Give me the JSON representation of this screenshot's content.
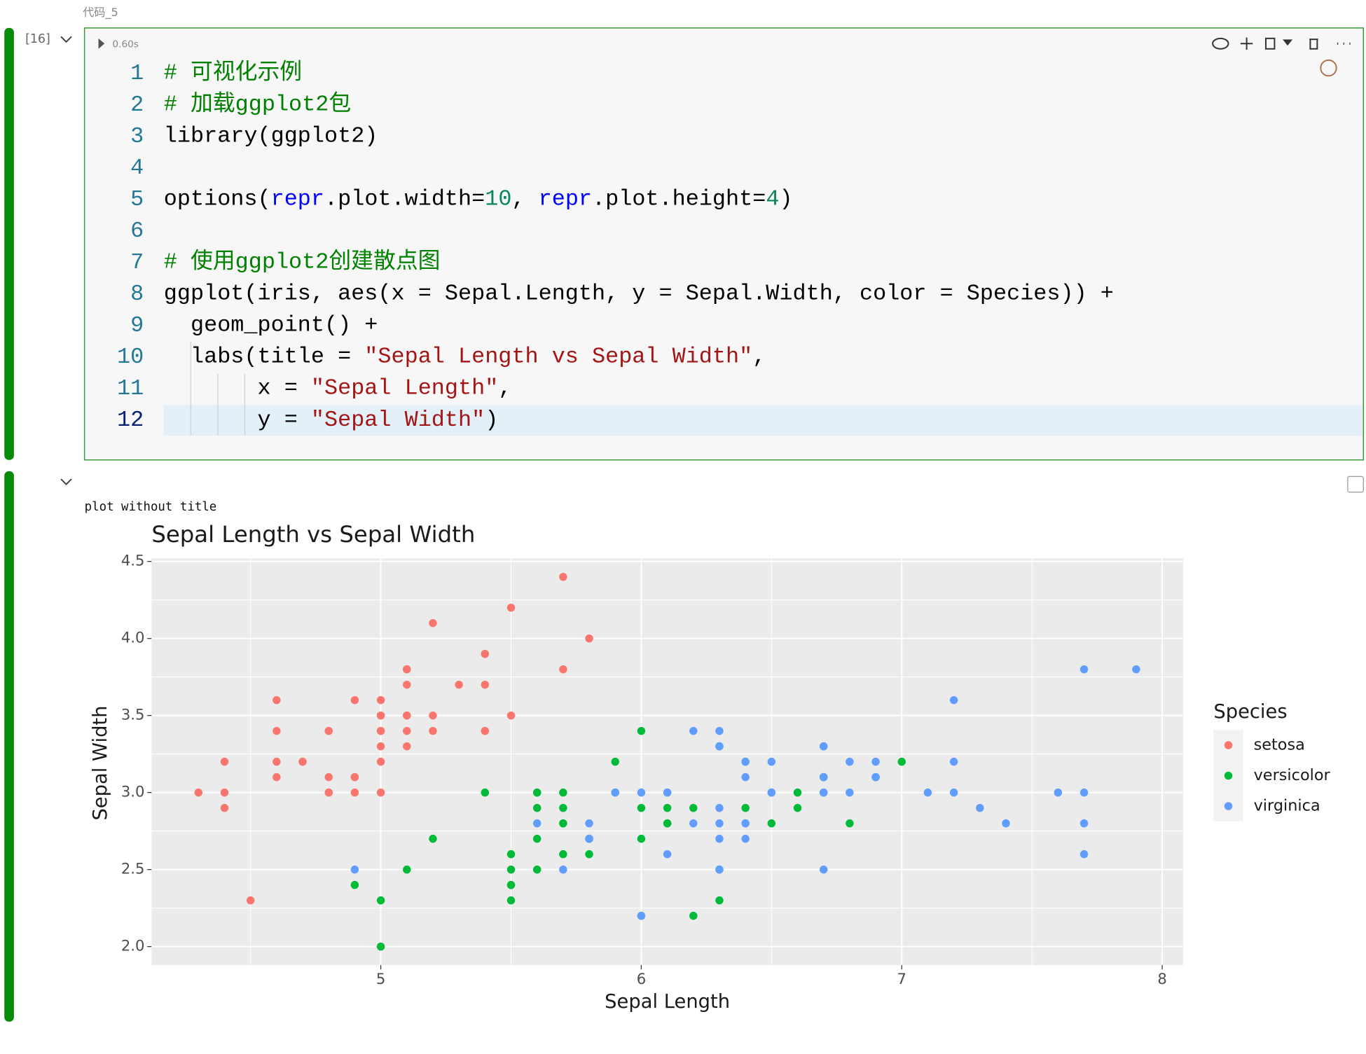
{
  "header": {
    "label": "代码_5"
  },
  "cell": {
    "execution_count": "[16]",
    "duration": "0.60s",
    "lines": [
      {
        "number": 1,
        "tokens": [
          {
            "text": "# 可视化示例",
            "color": "#008000"
          }
        ]
      },
      {
        "number": 2,
        "tokens": [
          {
            "text": "# 加载ggplot2包",
            "color": "#008000"
          }
        ]
      },
      {
        "number": 3,
        "tokens": [
          {
            "text": "library(ggplot2)",
            "color": "#000000"
          }
        ]
      },
      {
        "number": 4,
        "tokens": []
      },
      {
        "number": 5,
        "tokens": [
          {
            "text": "options(",
            "color": "#000000"
          },
          {
            "text": "repr",
            "color": "#0000ff"
          },
          {
            "text": ".plot.width=",
            "color": "#000000"
          },
          {
            "text": "10",
            "color": "#098658"
          },
          {
            "text": ", ",
            "color": "#000000"
          },
          {
            "text": "repr",
            "color": "#0000ff"
          },
          {
            "text": ".plot.height=",
            "color": "#000000"
          },
          {
            "text": "4",
            "color": "#098658"
          },
          {
            "text": ")",
            "color": "#000000"
          }
        ]
      },
      {
        "number": 6,
        "tokens": []
      },
      {
        "number": 7,
        "tokens": [
          {
            "text": "# 使用ggplot2创建散点图",
            "color": "#008000"
          }
        ]
      },
      {
        "number": 8,
        "tokens": [
          {
            "text": "ggplot(iris, aes(x = Sepal.Length, y = Sepal.Width, color = Species)) +",
            "color": "#000000"
          }
        ]
      },
      {
        "number": 9,
        "tokens": [
          {
            "text": "  geom_point() +",
            "color": "#000000"
          }
        ]
      },
      {
        "number": 10,
        "tokens": [
          {
            "text": "  labs(title = ",
            "color": "#000000"
          },
          {
            "text": "\"Sepal Length vs Sepal Width\"",
            "color": "#a31515"
          },
          {
            "text": ",",
            "color": "#000000"
          }
        ]
      },
      {
        "number": 11,
        "tokens": [
          {
            "text": "       x = ",
            "color": "#000000"
          },
          {
            "text": "\"Sepal Length\"",
            "color": "#a31515"
          },
          {
            "text": ",",
            "color": "#000000"
          }
        ]
      },
      {
        "number": 12,
        "tokens": [
          {
            "text": "       y = ",
            "color": "#000000"
          },
          {
            "text": "\"Sepal Width\"",
            "color": "#a31515"
          },
          {
            "text": ")",
            "color": "#000000"
          }
        ]
      }
    ]
  },
  "output": {
    "text": "plot without title"
  },
  "chart_data": {
    "type": "scatter",
    "title": "Sepal Length vs Sepal Width",
    "x_label": "Sepal Length",
    "y_label": "Sepal Width",
    "legend_title": "Species",
    "legend": "right",
    "grid": true,
    "xlim": [
      4.12,
      8.08
    ],
    "ylim": [
      1.88,
      4.52
    ],
    "xticks": [
      5,
      6,
      7,
      8
    ],
    "yticks": [
      {
        "value": 2,
        "label": "2.0"
      },
      2.5,
      {
        "value": 3,
        "label": "3.0"
      },
      3.5,
      {
        "value": 4,
        "label": "4.0"
      },
      4.5
    ],
    "series": [
      {
        "name": "setosa",
        "color": "#F8766D",
        "x": [
          5.1,
          4.9,
          4.7,
          4.6,
          5.0,
          5.4,
          4.6,
          5.0,
          4.4,
          4.9,
          5.4,
          4.8,
          4.8,
          4.3,
          5.8,
          5.7,
          5.4,
          5.1,
          5.7,
          5.1,
          5.4,
          5.1,
          4.6,
          5.1,
          4.8,
          5.0,
          5.0,
          5.2,
          5.2,
          4.7,
          4.8,
          5.4,
          5.2,
          5.5,
          4.9,
          5.0,
          5.5,
          4.9,
          4.4,
          5.1,
          5.0,
          4.5,
          4.4,
          5.0,
          5.1,
          4.8,
          5.1,
          4.6,
          5.3,
          5.0
        ],
        "values": [
          3.5,
          3.0,
          3.2,
          3.1,
          3.6,
          3.9,
          3.4,
          3.4,
          2.9,
          3.1,
          3.7,
          3.4,
          3.0,
          3.0,
          4.0,
          4.4,
          3.9,
          3.5,
          3.8,
          3.8,
          3.4,
          3.7,
          3.6,
          3.3,
          3.4,
          3.0,
          3.4,
          3.5,
          3.4,
          3.2,
          3.1,
          3.4,
          4.1,
          4.2,
          3.1,
          3.2,
          3.5,
          3.6,
          3.0,
          3.4,
          3.5,
          2.3,
          3.2,
          3.5,
          3.8,
          3.0,
          3.8,
          3.2,
          3.7,
          3.3
        ]
      },
      {
        "name": "versicolor",
        "color": "#00BA38",
        "x": [
          7.0,
          6.4,
          6.9,
          5.5,
          6.5,
          5.7,
          6.3,
          4.9,
          6.6,
          5.2,
          5.0,
          5.9,
          6.0,
          6.1,
          5.6,
          6.7,
          5.6,
          5.8,
          6.2,
          5.6,
          5.9,
          6.1,
          6.3,
          6.1,
          6.4,
          6.6,
          6.8,
          6.7,
          6.0,
          5.7,
          5.5,
          5.5,
          5.8,
          6.0,
          5.4,
          6.0,
          6.7,
          6.3,
          5.6,
          5.5,
          5.5,
          6.1,
          5.8,
          5.0,
          5.6,
          5.7,
          5.7,
          6.2,
          5.1,
          5.7
        ],
        "values": [
          3.2,
          3.2,
          3.1,
          2.3,
          2.8,
          2.8,
          3.3,
          2.4,
          2.9,
          2.7,
          2.0,
          3.0,
          2.2,
          2.9,
          2.9,
          3.1,
          3.0,
          2.7,
          2.2,
          2.5,
          3.2,
          2.8,
          2.5,
          2.8,
          2.9,
          3.0,
          2.8,
          3.0,
          2.9,
          2.6,
          2.4,
          2.4,
          2.7,
          2.7,
          3.0,
          3.4,
          3.1,
          2.3,
          3.0,
          2.5,
          2.6,
          3.0,
          2.6,
          2.3,
          2.7,
          3.0,
          2.9,
          2.9,
          2.5,
          2.8
        ]
      },
      {
        "name": "virginica",
        "color": "#619CFF",
        "x": [
          6.3,
          5.8,
          7.1,
          6.3,
          6.5,
          7.6,
          4.9,
          7.3,
          6.7,
          7.2,
          6.5,
          6.4,
          6.8,
          5.7,
          5.8,
          6.4,
          6.5,
          7.7,
          7.7,
          6.0,
          6.9,
          5.6,
          7.7,
          6.3,
          6.7,
          7.2,
          6.2,
          6.1,
          6.4,
          7.2,
          7.4,
          7.9,
          6.4,
          6.3,
          6.1,
          7.7,
          6.3,
          6.4,
          6.0,
          6.9,
          6.7,
          6.9,
          5.8,
          6.8,
          6.7,
          6.7,
          6.3,
          6.5,
          6.2,
          5.9
        ],
        "values": [
          3.3,
          2.7,
          3.0,
          2.9,
          3.0,
          3.0,
          2.5,
          2.9,
          2.5,
          3.6,
          3.2,
          2.7,
          3.0,
          2.5,
          2.8,
          3.2,
          3.0,
          3.8,
          2.6,
          2.2,
          3.2,
          2.8,
          2.8,
          2.7,
          3.3,
          3.2,
          2.8,
          3.0,
          2.8,
          3.0,
          2.8,
          3.8,
          2.8,
          2.8,
          2.6,
          3.0,
          3.4,
          3.1,
          3.0,
          3.1,
          3.1,
          3.1,
          2.7,
          3.2,
          3.3,
          3.0,
          2.5,
          3.0,
          3.4,
          3.0
        ]
      }
    ]
  }
}
